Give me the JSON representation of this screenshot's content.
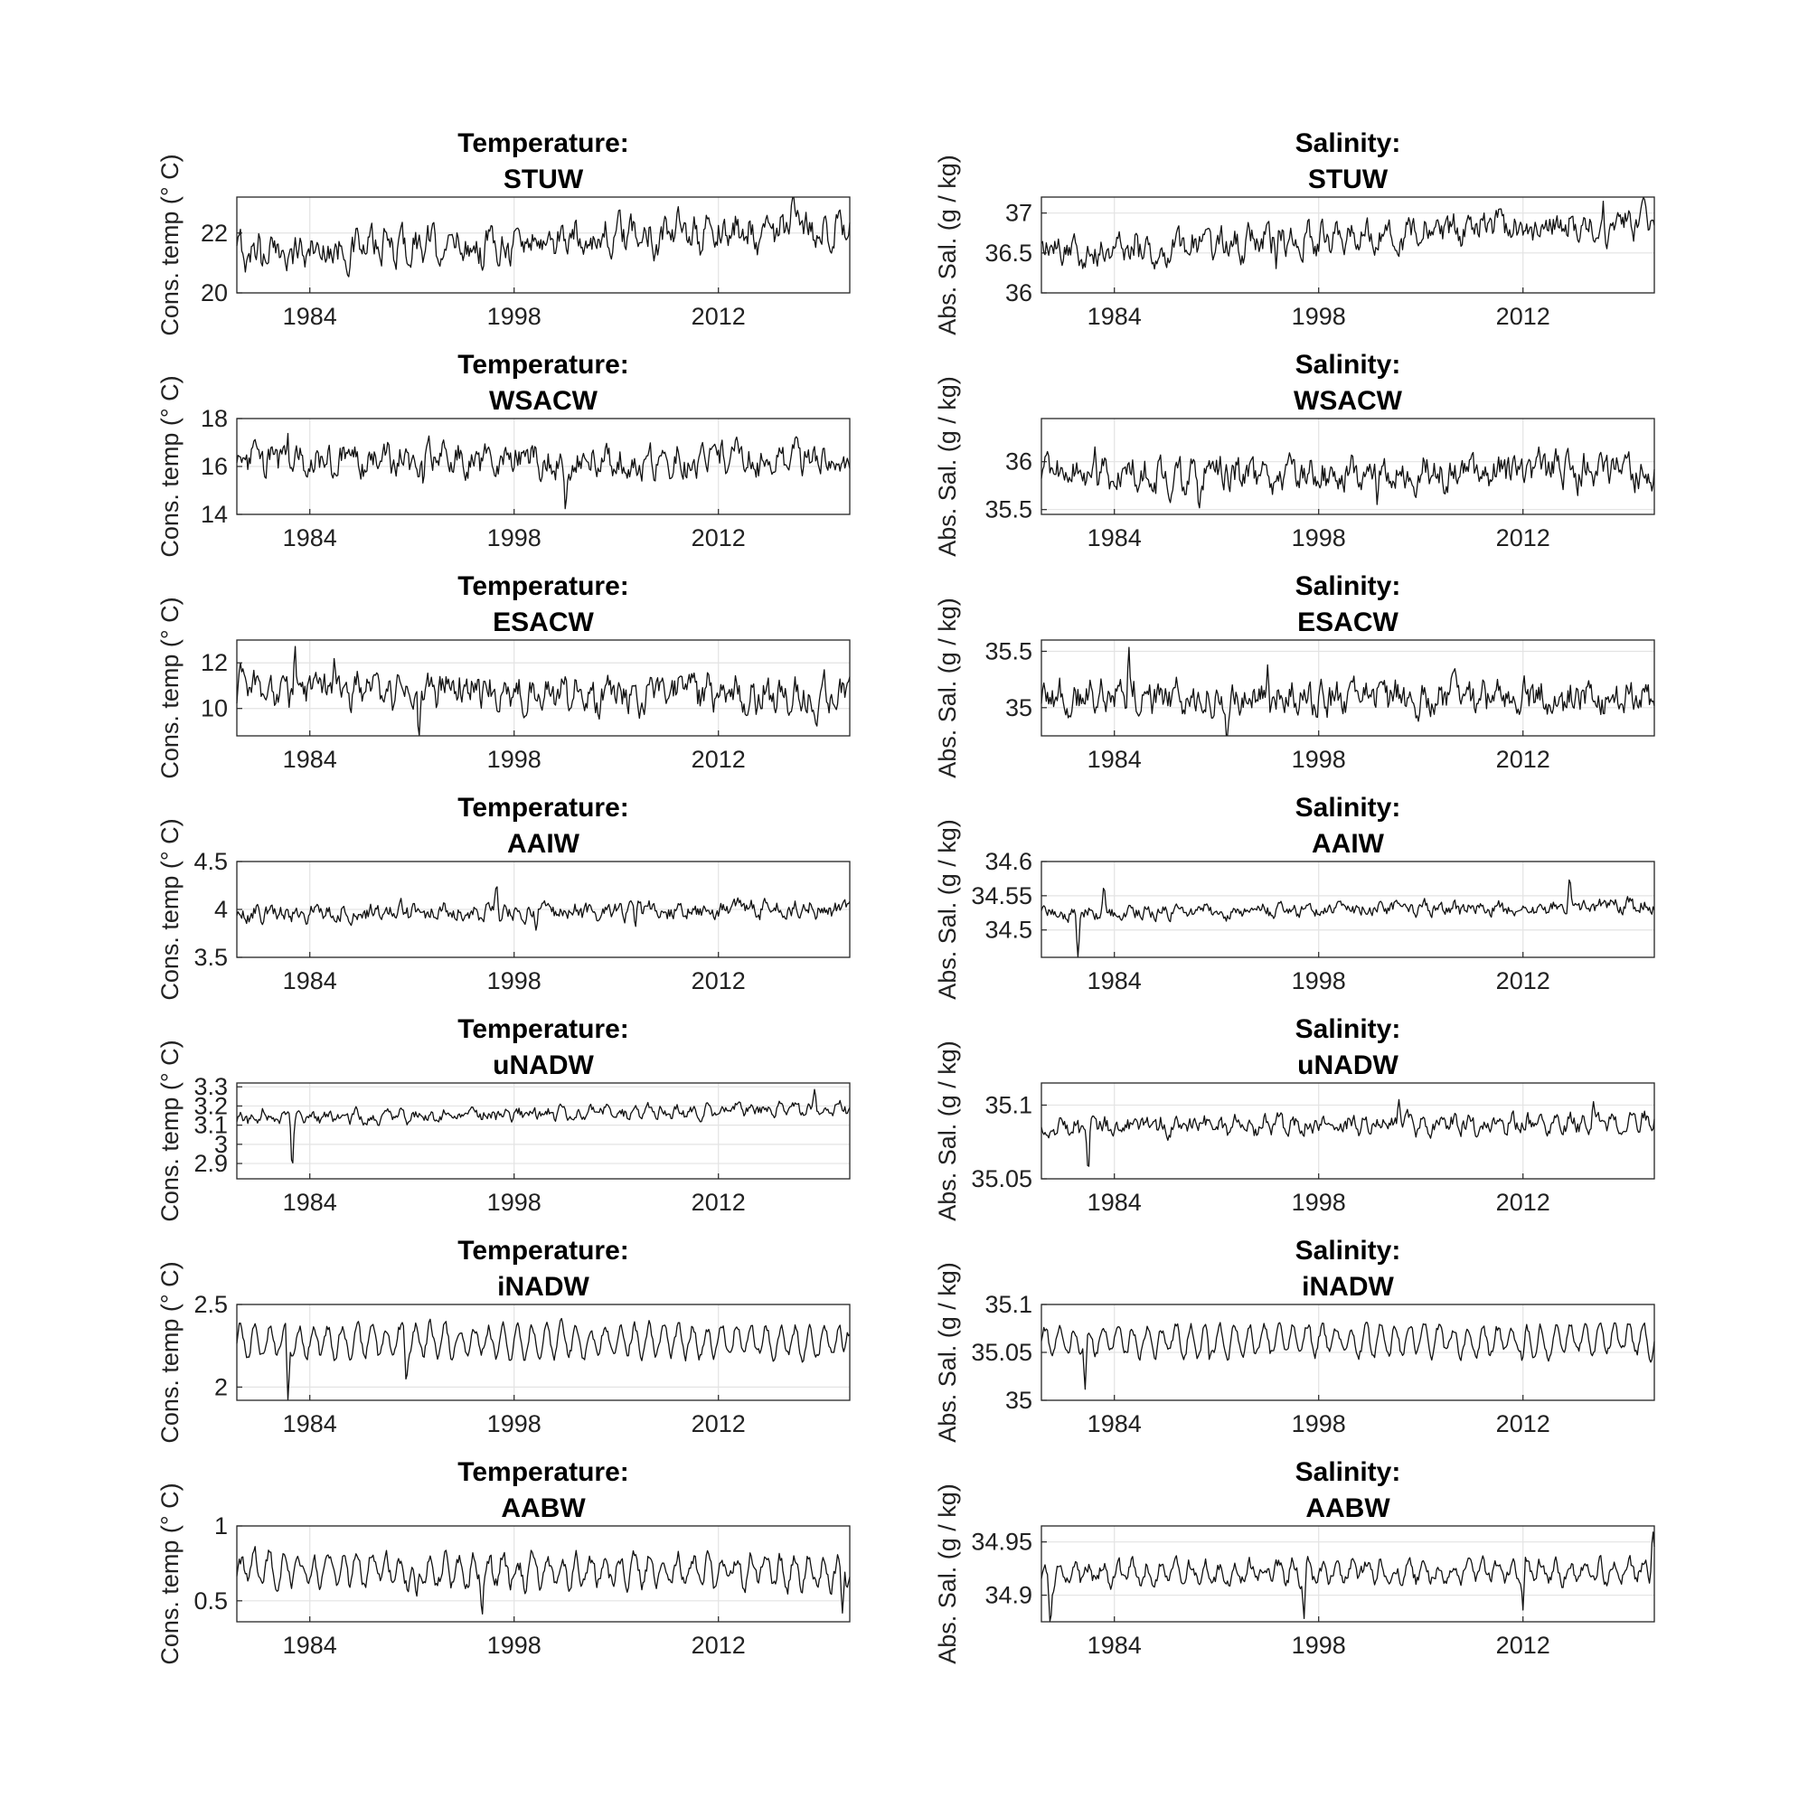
{
  "chart_data": [
    {
      "type": "line",
      "title_line1": "Temperature:",
      "title_line2": "STUW",
      "ylabel": "Cons. temp (° C)",
      "yticks": [
        "20",
        "22"
      ],
      "ytick_values": [
        20,
        22
      ],
      "ylim": [
        20,
        23.2
      ],
      "xticks": [
        "1984",
        "1998",
        "2012"
      ],
      "xtick_values": [
        1984,
        1998,
        2012
      ],
      "xlim": [
        1979,
        2021
      ],
      "x_start": 1979,
      "x_end": 2021,
      "baseline": 21.3,
      "trend": 0.9,
      "noise": 0.45,
      "seasonal": 0.25,
      "spikes": [
        [
          1995.9,
          -0.9
        ],
        [
          2017.1,
          1.2
        ],
        [
          1980.5,
          0.8
        ]
      ],
      "color": "#111111"
    },
    {
      "type": "line",
      "title_line1": "Salinity:",
      "title_line2": "STUW",
      "ylabel": "Abs. Sal. (g / kg)",
      "yticks": [
        "36",
        "36.5",
        "37"
      ],
      "ytick_values": [
        36,
        36.5,
        37
      ],
      "ylim": [
        36,
        37.2
      ],
      "xticks": [
        "1984",
        "1998",
        "2012"
      ],
      "xtick_values": [
        1984,
        1998,
        2012
      ],
      "xlim": [
        1979,
        2021
      ],
      "x_start": 1979,
      "x_end": 2021,
      "baseline": 36.5,
      "trend": 0.4,
      "noise": 0.15,
      "seasonal": 0.06,
      "spikes": [
        [
          1995.1,
          -0.35
        ],
        [
          2017.5,
          0.35
        ],
        [
          1985.5,
          0.3
        ]
      ],
      "color": "#111111"
    },
    {
      "type": "line",
      "title_line1": "Temperature:",
      "title_line2": "WSACW",
      "ylabel": "Cons. temp (° C)",
      "yticks": [
        "14",
        "16",
        "18"
      ],
      "ytick_values": [
        14,
        16,
        18
      ],
      "ylim": [
        14,
        18
      ],
      "xticks": [
        "1984",
        "1998",
        "2012"
      ],
      "xtick_values": [
        1984,
        1998,
        2012
      ],
      "xlim": [
        1979,
        2021
      ],
      "x_start": 1979,
      "x_end": 2021,
      "baseline": 16.2,
      "trend": 0.1,
      "noise": 0.5,
      "seasonal": 0.25,
      "spikes": [
        [
          1982.5,
          1.3
        ],
        [
          2001.5,
          -1.5
        ],
        [
          1991.8,
          -1.2
        ]
      ],
      "color": "#111111"
    },
    {
      "type": "line",
      "title_line1": "Salinity:",
      "title_line2": "WSACW",
      "ylabel": "Abs. Sal. (g / kg)",
      "yticks": [
        "35.5",
        "36"
      ],
      "ytick_values": [
        35.5,
        36
      ],
      "ylim": [
        35.45,
        36.45
      ],
      "xticks": [
        "1984",
        "1998",
        "2012"
      ],
      "xtick_values": [
        1984,
        1998,
        2012
      ],
      "xlim": [
        1979,
        2021
      ],
      "x_start": 1979,
      "x_end": 2021,
      "baseline": 35.85,
      "trend": 0.05,
      "noise": 0.14,
      "seasonal": 0.06,
      "spikes": [
        [
          1982.7,
          0.45
        ],
        [
          2002,
          -0.35
        ],
        [
          1989.8,
          -0.3
        ]
      ],
      "color": "#111111"
    },
    {
      "type": "line",
      "title_line1": "Temperature:",
      "title_line2": "ESACW",
      "ylabel": "Cons. temp (° C)",
      "yticks": [
        "10",
        "12"
      ],
      "ytick_values": [
        10,
        12
      ],
      "ylim": [
        8.8,
        13
      ],
      "xticks": [
        "1984",
        "1998",
        "2012"
      ],
      "xtick_values": [
        1984,
        1998,
        2012
      ],
      "xlim": [
        1979,
        2021
      ],
      "x_start": 1979,
      "x_end": 2021,
      "baseline": 10.8,
      "trend": -0.2,
      "noise": 0.6,
      "seasonal": 0.3,
      "spikes": [
        [
          1983,
          2.0
        ],
        [
          1991.5,
          -1.9
        ],
        [
          1985.7,
          1.6
        ]
      ],
      "color": "#111111"
    },
    {
      "type": "line",
      "title_line1": "Salinity:",
      "title_line2": "ESACW",
      "ylabel": "Abs. Sal. (g / kg)",
      "yticks": [
        "35",
        "35.5"
      ],
      "ytick_values": [
        35,
        35.5
      ],
      "ylim": [
        34.75,
        35.6
      ],
      "xticks": [
        "1984",
        "1998",
        "2012"
      ],
      "xtick_values": [
        1984,
        1998,
        2012
      ],
      "xlim": [
        1979,
        2021
      ],
      "x_start": 1979,
      "x_end": 2021,
      "baseline": 35.1,
      "trend": -0.02,
      "noise": 0.12,
      "seasonal": 0.05,
      "spikes": [
        [
          1985,
          0.45
        ],
        [
          1991.7,
          -0.35
        ],
        [
          1994.5,
          0.35
        ]
      ],
      "color": "#111111"
    },
    {
      "type": "line",
      "title_line1": "Temperature:",
      "title_line2": "AAIW",
      "ylabel": "Cons. temp (° C)",
      "yticks": [
        "3.5",
        "4",
        "4.5"
      ],
      "ytick_values": [
        3.5,
        4,
        4.5
      ],
      "ylim": [
        3.5,
        4.5
      ],
      "xticks": [
        "1984",
        "1998",
        "2012"
      ],
      "xtick_values": [
        1984,
        1998,
        2012
      ],
      "xlim": [
        1979,
        2021
      ],
      "x_start": 1979,
      "x_end": 2021,
      "baseline": 3.96,
      "trend": 0.05,
      "noise": 0.07,
      "seasonal": 0.03,
      "spikes": [
        [
          1996.8,
          0.4
        ],
        [
          2006.3,
          -0.3
        ],
        [
          1999.5,
          -0.25
        ]
      ],
      "color": "#111111"
    },
    {
      "type": "line",
      "title_line1": "Salinity:",
      "title_line2": "AAIW",
      "ylabel": "Abs. Sal. (g / kg)",
      "yticks": [
        "34.5",
        "34.55",
        "34.6"
      ],
      "ytick_values": [
        34.5,
        34.55,
        34.6
      ],
      "ylim": [
        34.46,
        34.6
      ],
      "xticks": [
        "1984",
        "1998",
        "2012"
      ],
      "xtick_values": [
        1984,
        1998,
        2012
      ],
      "xlim": [
        1979,
        2021
      ],
      "x_start": 1979,
      "x_end": 2021,
      "baseline": 34.525,
      "trend": 0.01,
      "noise": 0.008,
      "seasonal": 0.004,
      "spikes": [
        [
          1981.5,
          -0.06
        ],
        [
          1983.3,
          0.045
        ],
        [
          2015.2,
          0.055
        ]
      ],
      "color": "#111111"
    },
    {
      "type": "line",
      "title_line1": "Temperature:",
      "title_line2": "uNADW",
      "ylabel": "Cons. temp (° C)",
      "yticks": [
        "2.9",
        "3",
        "3.1",
        "3.2",
        "3.3"
      ],
      "ytick_values": [
        2.9,
        3,
        3.1,
        3.2,
        3.3
      ],
      "ylim": [
        2.82,
        3.32
      ],
      "xticks": [
        "1984",
        "1998",
        "2012"
      ],
      "xtick_values": [
        1984,
        1998,
        2012
      ],
      "xlim": [
        1979,
        2021
      ],
      "x_start": 1979,
      "x_end": 2021,
      "baseline": 3.13,
      "trend": 0.06,
      "noise": 0.025,
      "seasonal": 0.015,
      "spikes": [
        [
          1982.8,
          -0.3
        ],
        [
          2018.6,
          0.13
        ],
        [
          1980.8,
          0.08
        ]
      ],
      "color": "#111111"
    },
    {
      "type": "line",
      "title_line1": "Salinity:",
      "title_line2": "uNADW",
      "ylabel": "Abs. Sal. (g / kg)",
      "yticks": [
        "35.05",
        "35.1"
      ],
      "ytick_values": [
        35.05,
        35.1
      ],
      "ylim": [
        35.05,
        35.115
      ],
      "xticks": [
        "1984",
        "1998",
        "2012"
      ],
      "xtick_values": [
        1984,
        1998,
        2012
      ],
      "xlim": [
        1979,
        2021
      ],
      "x_start": 1979,
      "x_end": 2021,
      "baseline": 35.085,
      "trend": 0.004,
      "noise": 0.005,
      "seasonal": 0.003,
      "spikes": [
        [
          1982.2,
          -0.035
        ],
        [
          2003.5,
          0.022
        ],
        [
          2016.8,
          0.025
        ]
      ],
      "color": "#111111"
    },
    {
      "type": "line",
      "title_line1": "Temperature:",
      "title_line2": "iNADW",
      "ylabel": "Cons. temp (° C)",
      "yticks": [
        "2",
        "2.5"
      ],
      "ytick_values": [
        2,
        2.5
      ],
      "ylim": [
        1.92,
        2.5
      ],
      "xticks": [
        "1984",
        "1998",
        "2012"
      ],
      "xtick_values": [
        1984,
        1998,
        2012
      ],
      "xlim": [
        1979,
        2021
      ],
      "x_start": 1979,
      "x_end": 2021,
      "baseline": 2.28,
      "trend": 0.0,
      "noise": 0.03,
      "seasonal": 0.09,
      "spikes": [
        [
          1982.5,
          -0.38
        ],
        [
          1990.6,
          -0.2
        ],
        [
          2020.8,
          0.15
        ]
      ],
      "color": "#111111"
    },
    {
      "type": "line",
      "title_line1": "Salinity:",
      "title_line2": "iNADW",
      "ylabel": "Abs. Sal. (g / kg)",
      "yticks": [
        "35",
        "35.05",
        "35.1"
      ],
      "ytick_values": [
        35,
        35.05,
        35.1
      ],
      "ylim": [
        35,
        35.1
      ],
      "xticks": [
        "1984",
        "1998",
        "2012"
      ],
      "xtick_values": [
        1984,
        1998,
        2012
      ],
      "xlim": [
        1979,
        2021
      ],
      "x_start": 1979,
      "x_end": 2021,
      "baseline": 35.062,
      "trend": 0.0,
      "noise": 0.005,
      "seasonal": 0.014,
      "spikes": [
        [
          1982,
          -0.045
        ],
        [
          1990.5,
          -0.02
        ],
        [
          2012,
          -0.02
        ]
      ],
      "color": "#111111"
    },
    {
      "type": "line",
      "title_line1": "Temperature:",
      "title_line2": "AABW",
      "ylabel": "Cons. temp (° C)",
      "yticks": [
        "0.5",
        "1"
      ],
      "ytick_values": [
        0.5,
        1
      ],
      "ylim": [
        0.36,
        1.0
      ],
      "xticks": [
        "1984",
        "1998",
        "2012"
      ],
      "xtick_values": [
        1984,
        1998,
        2012
      ],
      "xlim": [
        1979,
        2021
      ],
      "x_start": 1979,
      "x_end": 2021,
      "baseline": 0.7,
      "trend": 0.0,
      "noise": 0.05,
      "seasonal": 0.09,
      "spikes": [
        [
          1991.3,
          -0.3
        ],
        [
          1995.8,
          -0.28
        ],
        [
          2020.5,
          -0.3
        ]
      ],
      "color": "#111111"
    },
    {
      "type": "line",
      "title_line1": "Salinity:",
      "title_line2": "AABW",
      "ylabel": "Abs. Sal. (g / kg)",
      "yticks": [
        "34.9",
        "34.95"
      ],
      "ytick_values": [
        34.9,
        34.95
      ],
      "ylim": [
        34.875,
        34.965
      ],
      "xticks": [
        "1984",
        "1998",
        "2012"
      ],
      "xtick_values": [
        1984,
        1998,
        2012
      ],
      "xlim": [
        1979,
        2021
      ],
      "x_start": 1979,
      "x_end": 2021,
      "baseline": 34.92,
      "trend": 0.003,
      "noise": 0.006,
      "seasonal": 0.008,
      "spikes": [
        [
          1979.6,
          -0.04
        ],
        [
          1997,
          -0.045
        ],
        [
          2012,
          -0.035
        ],
        [
          2020.9,
          0.045
        ]
      ],
      "color": "#111111"
    }
  ]
}
